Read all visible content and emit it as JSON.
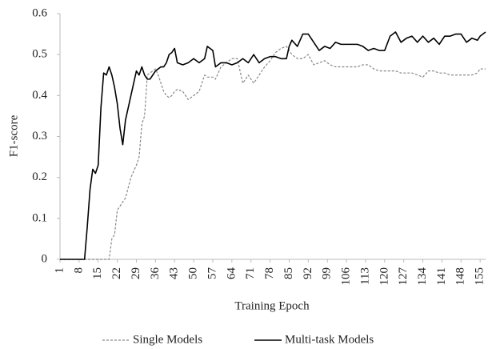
{
  "chart_data": {
    "type": "line",
    "x_label": "Training Epoch",
    "y_label": "F1-score",
    "x": [
      1,
      8,
      10,
      11,
      12,
      13,
      14,
      15,
      16,
      17,
      18,
      19,
      20,
      21,
      22,
      23,
      24,
      25,
      27,
      29,
      30,
      31,
      32,
      33,
      34,
      35,
      36,
      37,
      38,
      39,
      40,
      41,
      42,
      43,
      44,
      46,
      48,
      50,
      52,
      54,
      55,
      56,
      57,
      58,
      60,
      62,
      64,
      66,
      68,
      70,
      72,
      74,
      76,
      78,
      80,
      82,
      84,
      85,
      86,
      88,
      90,
      92,
      94,
      96,
      98,
      100,
      102,
      104,
      106,
      108,
      110,
      112,
      114,
      116,
      118,
      120,
      122,
      124,
      126,
      128,
      130,
      132,
      134,
      136,
      138,
      140,
      142,
      144,
      146,
      148,
      150,
      152,
      154,
      155,
      157
    ],
    "series": [
      {
        "name": "Single Models",
        "color": "#888888",
        "dash": true,
        "values": [
          0,
          0,
          0,
          0,
          0,
          0,
          0,
          0,
          0,
          0,
          0,
          0,
          0.05,
          0.06,
          0.12,
          0.13,
          0.14,
          0.15,
          0.2,
          0.23,
          0.25,
          0.33,
          0.35,
          0.45,
          0.455,
          0.46,
          0.465,
          0.45,
          0.43,
          0.41,
          0.4,
          0.395,
          0.4,
          0.41,
          0.415,
          0.41,
          0.39,
          0.4,
          0.41,
          0.45,
          0.445,
          0.445,
          0.445,
          0.44,
          0.47,
          0.48,
          0.49,
          0.49,
          0.43,
          0.45,
          0.43,
          0.45,
          0.47,
          0.485,
          0.505,
          0.515,
          0.52,
          0.51,
          0.5,
          0.49,
          0.49,
          0.5,
          0.475,
          0.48,
          0.485,
          0.475,
          0.47,
          0.47,
          0.47,
          0.47,
          0.47,
          0.475,
          0.475,
          0.465,
          0.46,
          0.46,
          0.46,
          0.46,
          0.455,
          0.455,
          0.455,
          0.45,
          0.445,
          0.46,
          0.46,
          0.455,
          0.455,
          0.45,
          0.45,
          0.45,
          0.45,
          0.45,
          0.455,
          0.465,
          0.465
        ]
      },
      {
        "name": "Multi-task Models",
        "color": "#000000",
        "dash": false,
        "values": [
          0,
          0,
          0,
          0.08,
          0.17,
          0.22,
          0.21,
          0.23,
          0.37,
          0.455,
          0.45,
          0.47,
          0.45,
          0.42,
          0.38,
          0.32,
          0.28,
          0.34,
          0.4,
          0.46,
          0.45,
          0.47,
          0.45,
          0.44,
          0.44,
          0.45,
          0.46,
          0.465,
          0.47,
          0.47,
          0.48,
          0.5,
          0.505,
          0.515,
          0.48,
          0.475,
          0.48,
          0.49,
          0.48,
          0.49,
          0.52,
          0.515,
          0.51,
          0.47,
          0.48,
          0.48,
          0.475,
          0.48,
          0.49,
          0.48,
          0.5,
          0.48,
          0.49,
          0.495,
          0.495,
          0.49,
          0.49,
          0.52,
          0.535,
          0.52,
          0.55,
          0.55,
          0.53,
          0.51,
          0.52,
          0.515,
          0.53,
          0.525,
          0.525,
          0.525,
          0.525,
          0.52,
          0.51,
          0.515,
          0.51,
          0.51,
          0.545,
          0.555,
          0.53,
          0.54,
          0.545,
          0.53,
          0.545,
          0.53,
          0.54,
          0.525,
          0.545,
          0.545,
          0.55,
          0.55,
          0.53,
          0.54,
          0.535,
          0.545,
          0.555
        ]
      }
    ],
    "xlim": [
      1,
      157
    ],
    "xticks": [
      1,
      8,
      15,
      22,
      29,
      36,
      43,
      50,
      57,
      64,
      71,
      78,
      85,
      92,
      99,
      106,
      113,
      120,
      127,
      134,
      141,
      148,
      155
    ],
    "ylim": [
      0,
      0.6
    ],
    "yticks": [
      0,
      0.1,
      0.2,
      0.3,
      0.4,
      0.5,
      0.6
    ],
    "legend": "bottom"
  }
}
